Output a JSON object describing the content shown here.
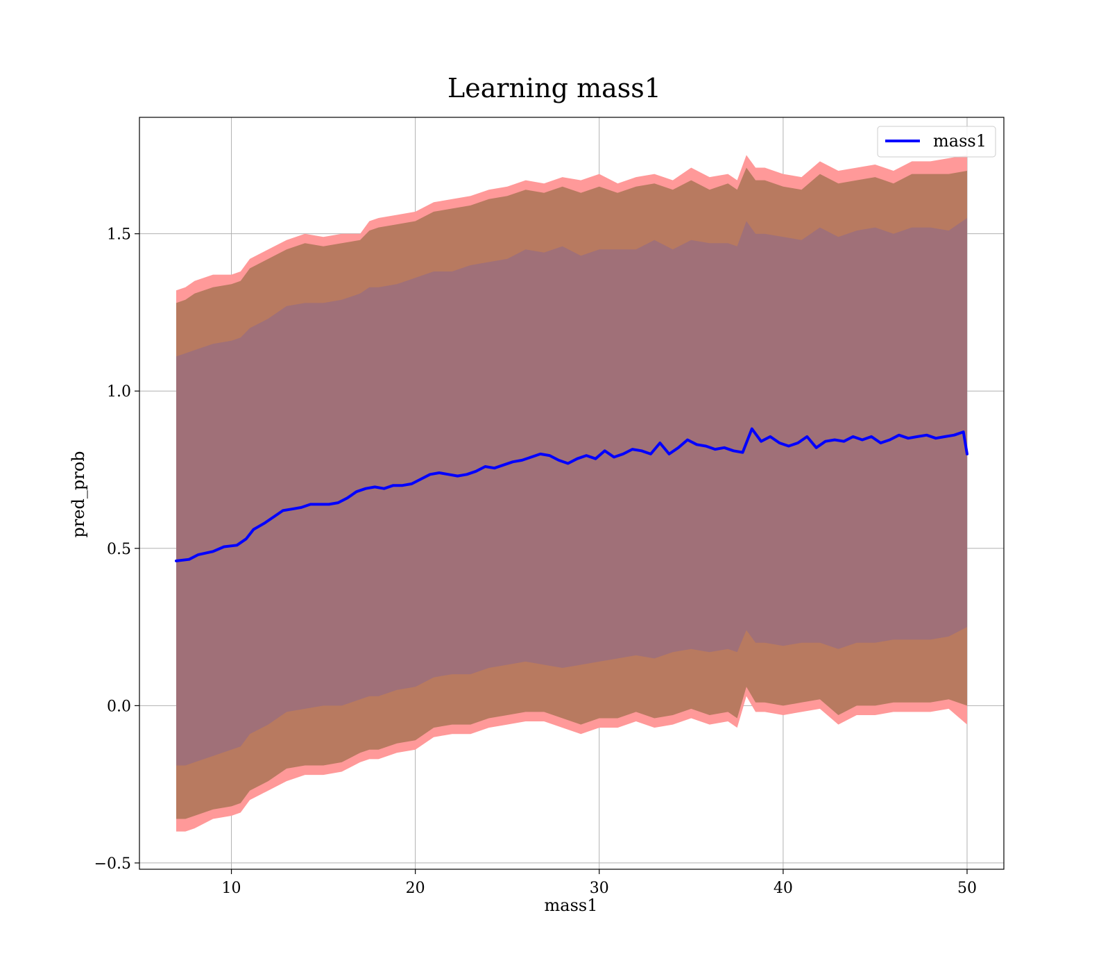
{
  "chart_data": {
    "type": "line",
    "title": "Learning mass1",
    "xlabel": "mass1",
    "ylabel": "pred_prob",
    "xlim": [
      5,
      52
    ],
    "ylim": [
      -0.52,
      1.87
    ],
    "xticks": [
      10,
      20,
      30,
      40,
      50
    ],
    "xtick_labels": [
      "10",
      "20",
      "30",
      "40",
      "50"
    ],
    "yticks": [
      -0.5,
      0.0,
      0.5,
      1.0,
      1.5
    ],
    "ytick_labels": [
      "−0.5",
      "0.0",
      "0.5",
      "1.0",
      "1.5"
    ],
    "grid": true,
    "legend": {
      "position": "top-right",
      "entries": [
        "mass1"
      ]
    },
    "series": [
      {
        "name": "mass1",
        "color": "#0000ff",
        "x": [
          7.0,
          7.7,
          8.2,
          9.0,
          9.6,
          10.3,
          10.8,
          11.2,
          11.8,
          12.3,
          12.8,
          13.3,
          13.8,
          14.3,
          14.8,
          15.3,
          15.8,
          16.3,
          16.8,
          17.3,
          17.8,
          18.3,
          18.8,
          19.3,
          19.8,
          20.3,
          20.8,
          21.3,
          21.8,
          22.3,
          22.8,
          23.3,
          23.8,
          24.3,
          24.8,
          25.3,
          25.8,
          26.3,
          26.8,
          27.3,
          27.8,
          28.3,
          28.8,
          29.3,
          29.8,
          30.3,
          30.8,
          31.3,
          31.8,
          32.3,
          32.8,
          33.3,
          33.8,
          34.3,
          34.8,
          35.3,
          35.8,
          36.3,
          36.8,
          37.3,
          37.8,
          38.3,
          38.8,
          39.3,
          39.8,
          40.3,
          40.8,
          41.3,
          41.8,
          42.3,
          42.8,
          43.3,
          43.8,
          44.3,
          44.8,
          45.3,
          45.8,
          46.3,
          46.8,
          47.3,
          47.8,
          48.3,
          48.8,
          49.3,
          49.8,
          50.0
        ],
        "y": [
          0.46,
          0.465,
          0.48,
          0.49,
          0.505,
          0.51,
          0.53,
          0.56,
          0.58,
          0.6,
          0.62,
          0.625,
          0.63,
          0.64,
          0.64,
          0.64,
          0.645,
          0.66,
          0.68,
          0.69,
          0.695,
          0.69,
          0.7,
          0.7,
          0.705,
          0.72,
          0.735,
          0.74,
          0.735,
          0.73,
          0.735,
          0.745,
          0.76,
          0.755,
          0.765,
          0.775,
          0.78,
          0.79,
          0.8,
          0.795,
          0.78,
          0.77,
          0.785,
          0.795,
          0.785,
          0.81,
          0.79,
          0.8,
          0.815,
          0.81,
          0.8,
          0.835,
          0.8,
          0.82,
          0.845,
          0.83,
          0.825,
          0.815,
          0.82,
          0.81,
          0.805,
          0.88,
          0.84,
          0.855,
          0.835,
          0.825,
          0.835,
          0.855,
          0.82,
          0.84,
          0.845,
          0.84,
          0.855,
          0.845,
          0.855,
          0.835,
          0.845,
          0.86,
          0.85,
          0.855,
          0.86,
          0.85,
          0.855,
          0.86,
          0.87,
          0.8
        ]
      }
    ],
    "bands": [
      {
        "name": "outer",
        "color": "#ff9999",
        "x": [
          7.0,
          7.5,
          8,
          9,
          10,
          10.5,
          11,
          12,
          13,
          14,
          15,
          16,
          17,
          17.5,
          18,
          19,
          20,
          21,
          22,
          23,
          24,
          25,
          26,
          27,
          28,
          29,
          30,
          31,
          32,
          33,
          34,
          35,
          36,
          37,
          37.5,
          38.0,
          38.5,
          39,
          40,
          41,
          42,
          43,
          44,
          45,
          46,
          47,
          48,
          49,
          50
        ],
        "upper": [
          1.32,
          1.33,
          1.35,
          1.37,
          1.37,
          1.38,
          1.42,
          1.45,
          1.48,
          1.5,
          1.49,
          1.5,
          1.5,
          1.54,
          1.55,
          1.56,
          1.57,
          1.6,
          1.61,
          1.62,
          1.64,
          1.65,
          1.67,
          1.66,
          1.68,
          1.67,
          1.69,
          1.66,
          1.68,
          1.69,
          1.67,
          1.71,
          1.68,
          1.69,
          1.67,
          1.75,
          1.71,
          1.71,
          1.69,
          1.68,
          1.73,
          1.7,
          1.71,
          1.72,
          1.7,
          1.73,
          1.73,
          1.74,
          1.75
        ],
        "lower": [
          -0.4,
          -0.4,
          -0.39,
          -0.36,
          -0.35,
          -0.34,
          -0.3,
          -0.27,
          -0.24,
          -0.22,
          -0.22,
          -0.21,
          -0.18,
          -0.17,
          -0.17,
          -0.15,
          -0.14,
          -0.1,
          -0.09,
          -0.09,
          -0.07,
          -0.06,
          -0.05,
          -0.05,
          -0.07,
          -0.09,
          -0.07,
          -0.07,
          -0.05,
          -0.07,
          -0.06,
          -0.04,
          -0.06,
          -0.05,
          -0.07,
          0.03,
          -0.02,
          -0.02,
          -0.03,
          -0.02,
          -0.01,
          -0.06,
          -0.03,
          -0.03,
          -0.02,
          -0.02,
          -0.02,
          -0.01,
          -0.06
        ]
      },
      {
        "name": "middle",
        "color": "#b87a60",
        "x": [
          7.0,
          7.5,
          8,
          9,
          10,
          10.5,
          11,
          12,
          13,
          14,
          15,
          16,
          17,
          17.5,
          18,
          19,
          20,
          21,
          22,
          23,
          24,
          25,
          26,
          27,
          28,
          29,
          30,
          31,
          32,
          33,
          34,
          35,
          36,
          37,
          37.5,
          38.0,
          38.5,
          39,
          40,
          41,
          42,
          43,
          44,
          45,
          46,
          47,
          48,
          49,
          50
        ],
        "upper": [
          1.28,
          1.29,
          1.31,
          1.33,
          1.34,
          1.35,
          1.39,
          1.42,
          1.45,
          1.47,
          1.46,
          1.47,
          1.48,
          1.51,
          1.52,
          1.53,
          1.54,
          1.57,
          1.58,
          1.59,
          1.61,
          1.62,
          1.64,
          1.63,
          1.65,
          1.63,
          1.65,
          1.63,
          1.65,
          1.66,
          1.64,
          1.67,
          1.64,
          1.66,
          1.64,
          1.71,
          1.67,
          1.67,
          1.65,
          1.64,
          1.69,
          1.66,
          1.67,
          1.68,
          1.66,
          1.69,
          1.69,
          1.69,
          1.7
        ],
        "lower": [
          -0.36,
          -0.36,
          -0.35,
          -0.33,
          -0.32,
          -0.31,
          -0.27,
          -0.24,
          -0.2,
          -0.19,
          -0.19,
          -0.18,
          -0.15,
          -0.14,
          -0.14,
          -0.12,
          -0.11,
          -0.07,
          -0.06,
          -0.06,
          -0.04,
          -0.03,
          -0.02,
          -0.02,
          -0.04,
          -0.06,
          -0.04,
          -0.04,
          -0.02,
          -0.04,
          -0.03,
          -0.01,
          -0.03,
          -0.02,
          -0.04,
          0.06,
          0.01,
          0.01,
          0.0,
          0.01,
          0.02,
          -0.03,
          0.0,
          0.0,
          0.01,
          0.01,
          0.01,
          0.02,
          0.0
        ]
      },
      {
        "name": "inner",
        "color": "#a07078",
        "x": [
          7.0,
          7.5,
          8,
          9,
          10,
          10.5,
          11,
          12,
          13,
          14,
          15,
          16,
          17,
          17.5,
          18,
          19,
          20,
          21,
          22,
          23,
          24,
          25,
          26,
          27,
          28,
          29,
          30,
          31,
          32,
          33,
          34,
          35,
          36,
          37,
          37.5,
          38.0,
          38.5,
          39,
          40,
          41,
          42,
          43,
          44,
          45,
          46,
          47,
          48,
          49,
          50
        ],
        "upper": [
          1.11,
          1.12,
          1.13,
          1.15,
          1.16,
          1.17,
          1.2,
          1.23,
          1.27,
          1.28,
          1.28,
          1.29,
          1.31,
          1.33,
          1.33,
          1.34,
          1.36,
          1.38,
          1.38,
          1.4,
          1.41,
          1.42,
          1.45,
          1.44,
          1.46,
          1.43,
          1.45,
          1.45,
          1.45,
          1.48,
          1.45,
          1.48,
          1.47,
          1.47,
          1.46,
          1.54,
          1.5,
          1.5,
          1.49,
          1.48,
          1.52,
          1.49,
          1.51,
          1.52,
          1.5,
          1.52,
          1.52,
          1.51,
          1.55
        ],
        "lower": [
          -0.19,
          -0.19,
          -0.18,
          -0.16,
          -0.14,
          -0.13,
          -0.09,
          -0.06,
          -0.02,
          -0.01,
          0.0,
          0.0,
          0.02,
          0.03,
          0.03,
          0.05,
          0.06,
          0.09,
          0.1,
          0.1,
          0.12,
          0.13,
          0.14,
          0.13,
          0.12,
          0.13,
          0.14,
          0.15,
          0.16,
          0.15,
          0.17,
          0.18,
          0.17,
          0.18,
          0.17,
          0.24,
          0.2,
          0.2,
          0.19,
          0.2,
          0.2,
          0.18,
          0.2,
          0.2,
          0.21,
          0.21,
          0.21,
          0.22,
          0.25
        ]
      }
    ]
  }
}
